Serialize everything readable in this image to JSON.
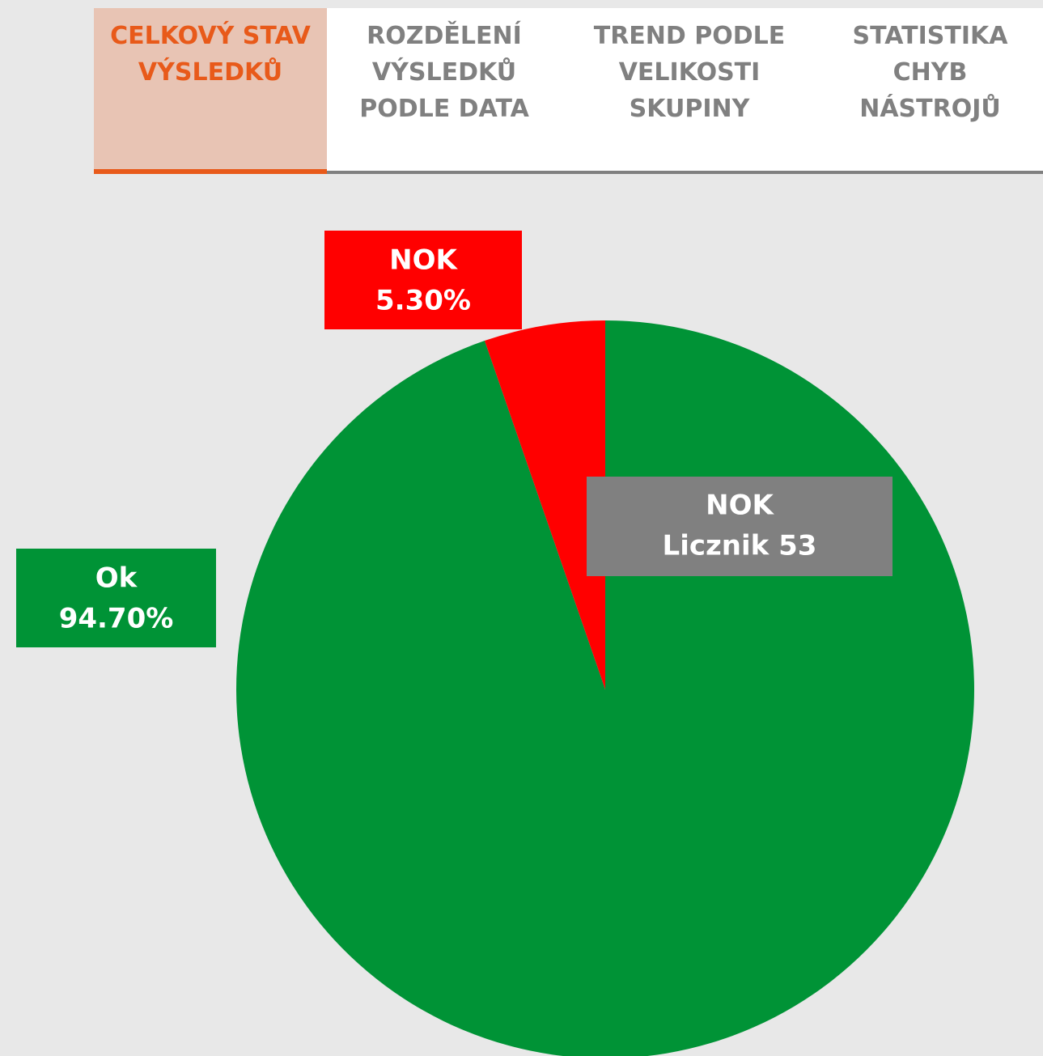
{
  "tabs": [
    {
      "label": "CELKOVÝ STAV VÝSLEDKŮ",
      "active": true
    },
    {
      "label": "ROZDĚLENÍ VÝSLEDKŮ PODLE DATA",
      "active": false
    },
    {
      "label": "TREND PODLE VELIKOSTI SKUPINY",
      "active": false
    },
    {
      "label": "STATISTIKA CHYB NÁSTROJŮ",
      "active": false
    }
  ],
  "chart_data": {
    "type": "pie",
    "categories": [
      "Ok",
      "NOK"
    ],
    "values": [
      94.7,
      5.3
    ],
    "value_labels": [
      "94.70%",
      "5.30%"
    ],
    "colors": [
      "#009336",
      "#ff0000"
    ],
    "tooltip": {
      "title": "NOK",
      "text": "Licznik 53"
    }
  }
}
